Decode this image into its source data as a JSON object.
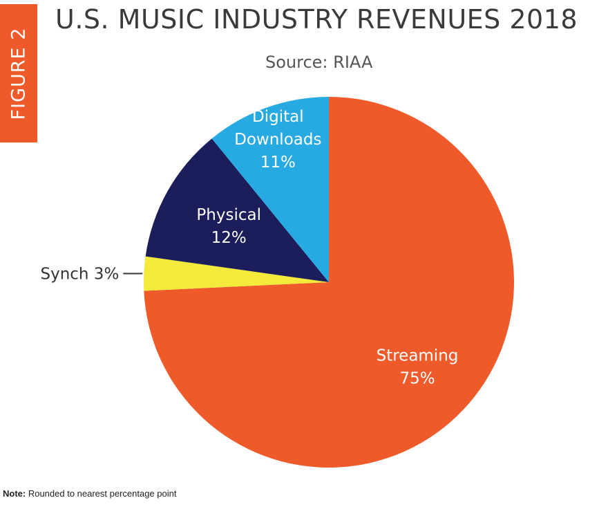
{
  "figure_tab": {
    "label": "FIGURE 2"
  },
  "header": {
    "title": "U.S. MUSIC INDUSTRY REVENUES 2018",
    "subtitle": "Source: RIAA"
  },
  "note": {
    "label": "Note:",
    "text": " Rounded to nearest percentage point"
  },
  "colors": {
    "accent": "#ef5a2b",
    "streaming": "#ef5a2b",
    "synch": "#f4ea3b",
    "physical": "#1c1e5c",
    "digital_downloads": "#26aae1",
    "label_light": "#ffffff",
    "label_dark": "#333333",
    "title_text": "#3a3a3a"
  },
  "chart_data": {
    "type": "pie",
    "title": "U.S. MUSIC INDUSTRY REVENUES 2018",
    "subtitle": "Source: RIAA",
    "start_angle_deg": 0,
    "direction": "clockwise",
    "slices": [
      {
        "name": "Streaming",
        "value": 75,
        "label_lines": [
          "Streaming",
          "75%"
        ],
        "color": "#ef5a2b",
        "label_color": "#ffffff"
      },
      {
        "name": "Synch",
        "value": 3,
        "label_lines": [
          "Synch 3%"
        ],
        "color": "#f4ea3b",
        "label_color": "#333333",
        "leader_line": true
      },
      {
        "name": "Physical",
        "value": 12,
        "label_lines": [
          "Physical",
          "12%"
        ],
        "color": "#1c1e5c",
        "label_color": "#ffffff"
      },
      {
        "name": "Digital Downloads",
        "value": 11,
        "label_lines": [
          "Digital",
          "Downloads",
          "11%"
        ],
        "color": "#26aae1",
        "label_color": "#ffffff"
      }
    ]
  }
}
